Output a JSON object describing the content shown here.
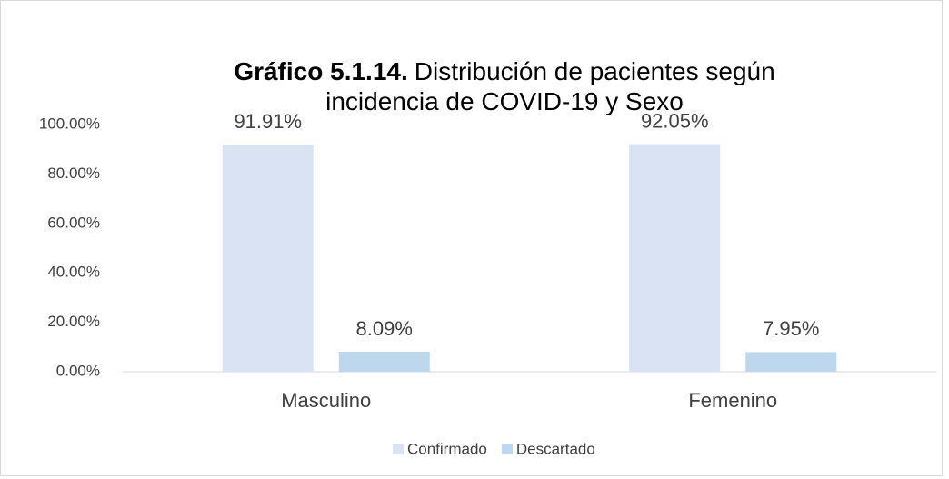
{
  "chart_data": {
    "type": "bar",
    "title_label": "Gráfico 5.1.14.",
    "title": "Distribución de pacientes según incidencia de COVID-19 y Sexo",
    "categories": [
      "Masculino",
      "Femenino"
    ],
    "series": [
      {
        "name": "Confirmado",
        "color": "#dae3f3",
        "values": [
          91.91,
          92.05
        ],
        "value_labels": [
          "91.91%",
          "92.05%"
        ]
      },
      {
        "name": "Descartado",
        "color": "#bdd7ee",
        "values": [
          8.09,
          7.95
        ],
        "value_labels": [
          "8.09%",
          "7.95%"
        ]
      }
    ],
    "ylim": [
      0,
      100
    ],
    "yticks": [
      {
        "value": 0,
        "label": "0.00%"
      },
      {
        "value": 20,
        "label": "20.00%"
      },
      {
        "value": 40,
        "label": "40.00%"
      },
      {
        "value": 60,
        "label": "60.00%"
      },
      {
        "value": 80,
        "label": "80.00%"
      },
      {
        "value": 100,
        "label": "100.00%"
      }
    ],
    "grid": false,
    "legend": "bottom"
  }
}
